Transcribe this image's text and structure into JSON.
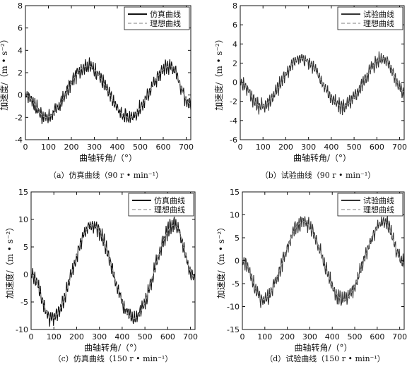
{
  "chart_data": [
    {
      "type": "line",
      "caption": "（a）仿真曲线（90 r • min⁻¹）",
      "xlabel": "曲轴转角/（°）",
      "ylabel": "加速度/（m • s⁻²）",
      "xlim": [
        0,
        720
      ],
      "ylim": [
        -4,
        8
      ],
      "xticks": [
        0,
        100,
        200,
        300,
        400,
        500,
        600,
        700
      ],
      "yticks": [
        -4,
        -2,
        0,
        2,
        4,
        6,
        8
      ],
      "legend_position": "top-right",
      "series": [
        {
          "name": "仿真曲线",
          "style": "solid-noisy",
          "color": "#111111",
          "x": [
            0,
            90,
            270,
            450,
            630,
            720
          ],
          "y": [
            0,
            -2,
            2.6,
            -2,
            2.6,
            -0.8
          ]
        },
        {
          "name": "理想曲线",
          "style": "dashed",
          "color": "#999999",
          "x": [
            0,
            90,
            270,
            450,
            630,
            720
          ],
          "y": [
            0,
            -2,
            2.6,
            -2,
            2.6,
            -0.8
          ]
        }
      ]
    },
    {
      "type": "line",
      "caption": "（b）试验曲线（90 r • min⁻¹）",
      "xlabel": "曲轴转角/（°）",
      "ylabel": "加速度/（m • s⁻²）",
      "xlim": [
        0,
        720
      ],
      "ylim": [
        -6,
        8
      ],
      "xticks": [
        0,
        100,
        200,
        300,
        400,
        500,
        600,
        700
      ],
      "yticks": [
        -6,
        -4,
        -2,
        0,
        2,
        4,
        6,
        8
      ],
      "legend_position": "top-right",
      "series": [
        {
          "name": "试验曲线",
          "style": "solid-noisy",
          "color": "#333333",
          "x": [
            0,
            90,
            270,
            450,
            630,
            720
          ],
          "y": [
            0,
            -2.5,
            2.5,
            -2.5,
            2.5,
            -1
          ]
        },
        {
          "name": "理想曲线",
          "style": "dashed",
          "color": "#999999",
          "x": [
            0,
            90,
            270,
            450,
            630,
            720
          ],
          "y": [
            0,
            -2.5,
            2.5,
            -2.5,
            2.5,
            -1
          ]
        }
      ]
    },
    {
      "type": "line",
      "caption": "（c）仿真曲线（150 r • min⁻¹）",
      "xlabel": "曲轴转角/（°）",
      "ylabel": "加速度/（m • s⁻²）",
      "xlim": [
        0,
        720
      ],
      "ylim": [
        -10,
        15
      ],
      "xticks": [
        0,
        100,
        200,
        300,
        400,
        500,
        600,
        700
      ],
      "yticks": [
        -10,
        -5,
        0,
        5,
        10,
        15
      ],
      "legend_position": "top-right",
      "series": [
        {
          "name": "仿真曲线",
          "style": "solid-noisy",
          "color": "#111111",
          "x": [
            0,
            90,
            270,
            450,
            630,
            720
          ],
          "y": [
            0,
            -8,
            9,
            -8,
            9,
            -0.5
          ]
        },
        {
          "name": "理想曲线",
          "style": "dashed",
          "color": "#999999",
          "x": [
            0,
            90,
            270,
            450,
            630,
            720
          ],
          "y": [
            0,
            -8,
            9,
            -8,
            9,
            -0.5
          ]
        }
      ]
    },
    {
      "type": "line",
      "caption": "（d）试验曲线（150 r • min⁻¹）",
      "xlabel": "曲轴转角/（°）",
      "ylabel": "加速度/（m • s⁻²）",
      "xlim": [
        0,
        720
      ],
      "ylim": [
        -15,
        15
      ],
      "xticks": [
        0,
        100,
        200,
        300,
        400,
        500,
        600,
        700
      ],
      "yticks": [
        -15,
        -10,
        -5,
        0,
        5,
        10,
        15
      ],
      "legend_position": "top-right",
      "series": [
        {
          "name": "试验曲线",
          "style": "solid-noisy",
          "color": "#333333",
          "x": [
            0,
            90,
            270,
            450,
            630,
            720
          ],
          "y": [
            0,
            -8.5,
            8.5,
            -8.5,
            8.5,
            -0.5
          ]
        },
        {
          "name": "理想曲线",
          "style": "dashed",
          "color": "#999999",
          "x": [
            0,
            90,
            270,
            450,
            630,
            720
          ],
          "y": [
            0,
            -8.5,
            8.5,
            -8.5,
            8.5,
            -0.5
          ]
        }
      ]
    }
  ]
}
